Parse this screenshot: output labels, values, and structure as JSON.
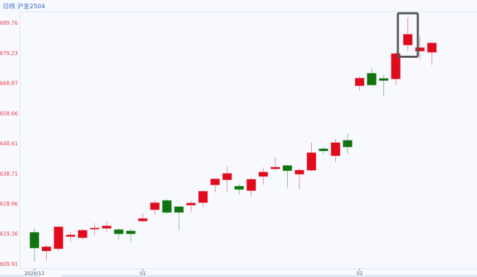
{
  "header": {
    "title": "日线 沪金2504"
  },
  "colors": {
    "up": "#e00b1c",
    "down": "#0f740f",
    "tick_label": "#e8424f",
    "x_label": "#505a6e",
    "highlight": "#555555",
    "title": "#3d6fc6"
  },
  "chart_data": {
    "type": "candlestick",
    "title": "",
    "xlabel": "",
    "ylabel": "",
    "yscale": "log",
    "ylim": [
      608.4,
      693.7
    ],
    "grid": false,
    "y_ticks": [
      "689.76",
      "679.23",
      "668.87",
      "658.66",
      "648.61",
      "638.71",
      "628.96",
      "619.36",
      "609.91"
    ],
    "x_ticks": [
      {
        "index": 0,
        "label": "2024/12"
      },
      {
        "index": 9,
        "label": "01"
      },
      {
        "index": 27,
        "label": "02"
      }
    ],
    "highlighted_index": 31,
    "candles": [
      {
        "o": 619.79,
        "h": 621.17,
        "l": 610.56,
        "c": 614.88
      },
      {
        "o": 613.95,
        "h": 615.75,
        "l": 610.99,
        "c": 615.25
      },
      {
        "o": 614.66,
        "h": 621.83,
        "l": 614.01,
        "c": 621.54
      },
      {
        "o": 618.49,
        "h": 619.79,
        "l": 616.89,
        "c": 618.98
      },
      {
        "o": 618.12,
        "h": 621.02,
        "l": 617.26,
        "c": 620.45
      },
      {
        "o": 621.06,
        "h": 622.7,
        "l": 618.77,
        "c": 621.17
      },
      {
        "o": 621.1,
        "h": 623.36,
        "l": 620.07,
        "c": 621.83
      },
      {
        "o": 620.67,
        "h": 621.02,
        "l": 617.54,
        "c": 619.35
      },
      {
        "o": 620.23,
        "h": 620.95,
        "l": 616.67,
        "c": 619.35
      },
      {
        "o": 623.43,
        "h": 625.78,
        "l": 622.99,
        "c": 624.18
      },
      {
        "o": 627.03,
        "h": 630.19,
        "l": 625.35,
        "c": 629.23
      },
      {
        "o": 629.96,
        "h": 630.34,
        "l": 625.78,
        "c": 626.15
      },
      {
        "o": 627.97,
        "h": 628.19,
        "l": 620.45,
        "c": 626.15
      },
      {
        "o": 628.48,
        "h": 629.9,
        "l": 626.15,
        "c": 629.14
      },
      {
        "o": 629.29,
        "h": 632.93,
        "l": 627.82,
        "c": 632.93
      },
      {
        "o": 635.02,
        "h": 637.09,
        "l": 632.56,
        "c": 636.94
      },
      {
        "o": 636.65,
        "h": 640.92,
        "l": 632.72,
        "c": 638.72
      },
      {
        "o": 634.57,
        "h": 635.38,
        "l": 631.96,
        "c": 633.53
      },
      {
        "o": 633.15,
        "h": 637.47,
        "l": 631.14,
        "c": 636.81
      },
      {
        "o": 637.76,
        "h": 640.69,
        "l": 635.15,
        "c": 639.17
      },
      {
        "o": 640.24,
        "h": 644.02,
        "l": 639.63,
        "c": 640.76
      },
      {
        "o": 641.3,
        "h": 641.59,
        "l": 634.16,
        "c": 639.63
      },
      {
        "o": 638.5,
        "h": 640.24,
        "l": 633.58,
        "c": 639.78
      },
      {
        "o": 639.78,
        "h": 648.84,
        "l": 639.33,
        "c": 645.51
      },
      {
        "o": 646.8,
        "h": 647.64,
        "l": 645.06,
        "c": 646.12
      },
      {
        "o": 644.53,
        "h": 649.99,
        "l": 642.5,
        "c": 648.84
      },
      {
        "o": 649.6,
        "h": 651.83,
        "l": 645.06,
        "c": 647.42
      },
      {
        "o": 667.99,
        "h": 671.15,
        "l": 666.3,
        "c": 670.55
      },
      {
        "o": 672.23,
        "h": 673.95,
        "l": 668.22,
        "c": 668.22
      },
      {
        "o": 670.46,
        "h": 671.73,
        "l": 664.45,
        "c": 669.76
      },
      {
        "o": 670.32,
        "h": 679.49,
        "l": 668.22,
        "c": 679.01
      },
      {
        "o": 682.01,
        "h": 691.69,
        "l": 679.83,
        "c": 685.74
      },
      {
        "o": 679.89,
        "h": 685.12,
        "l": 676.97,
        "c": 681.07
      },
      {
        "o": 679.49,
        "h": 682.7,
        "l": 675.07,
        "c": 682.7
      }
    ]
  }
}
